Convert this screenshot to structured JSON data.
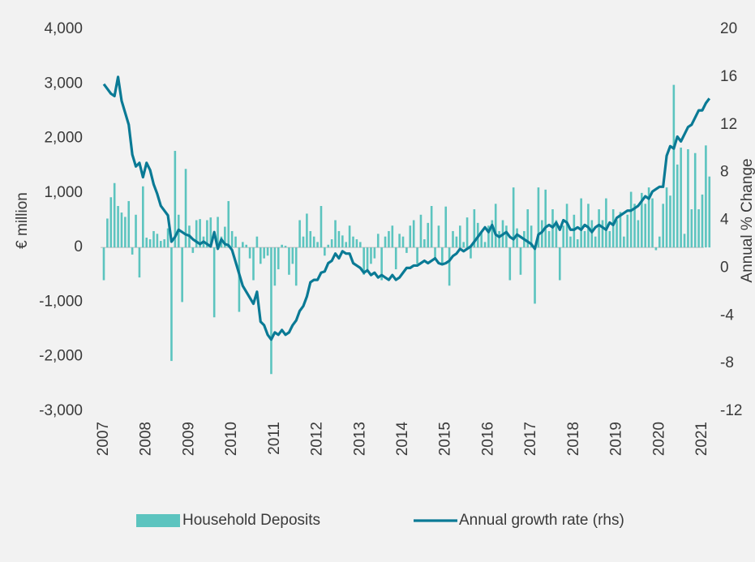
{
  "chart_data": {
    "type": "bar-line",
    "y_label": "€ million",
    "y2_label": "Annual % Change",
    "categories": [
      "2007",
      null,
      null,
      null,
      null,
      null,
      null,
      null,
      null,
      null,
      null,
      null,
      "2008",
      null,
      null,
      null,
      null,
      null,
      null,
      null,
      null,
      null,
      null,
      null,
      "2009",
      null,
      null,
      null,
      null,
      null,
      null,
      null,
      null,
      null,
      null,
      null,
      "2010",
      null,
      null,
      null,
      null,
      null,
      null,
      null,
      null,
      null,
      null,
      null,
      "2011",
      null,
      null,
      null,
      null,
      null,
      null,
      null,
      null,
      null,
      null,
      null,
      "2012",
      null,
      null,
      null,
      null,
      null,
      null,
      null,
      null,
      null,
      null,
      null,
      "2013",
      null,
      null,
      null,
      null,
      null,
      null,
      null,
      null,
      null,
      null,
      null,
      "2014",
      null,
      null,
      null,
      null,
      null,
      null,
      null,
      null,
      null,
      null,
      null,
      "2015",
      null,
      null,
      null,
      null,
      null,
      null,
      null,
      null,
      null,
      null,
      null,
      "2016",
      null,
      null,
      null,
      null,
      null,
      null,
      null,
      null,
      null,
      null,
      null,
      "2017",
      null,
      null,
      null,
      null,
      null,
      null,
      null,
      null,
      null,
      null,
      null,
      "2018",
      null,
      null,
      null,
      null,
      null,
      null,
      null,
      null,
      null,
      null,
      null,
      "2019",
      null,
      null,
      null,
      null,
      null,
      null,
      null,
      null,
      null,
      null,
      null,
      "2020",
      null,
      null,
      null,
      null,
      null,
      null,
      null,
      null,
      null,
      null,
      null,
      "2021",
      null,
      null
    ],
    "series": [
      {
        "name": "Household Deposits",
        "type": "bar",
        "color": "#5cc4bf",
        "values": [
          -600,
          530,
          920,
          1180,
          760,
          640,
          560,
          850,
          -130,
          600,
          -550,
          1120,
          180,
          150,
          300,
          250,
          120,
          150,
          350,
          -2080,
          1770,
          600,
          -1000,
          1440,
          400,
          -100,
          500,
          520,
          200,
          500,
          550,
          -1280,
          560,
          200,
          380,
          850,
          300,
          200,
          -1180,
          100,
          50,
          -200,
          -600,
          200,
          -300,
          -200,
          -150,
          -2320,
          -700,
          -400,
          50,
          30,
          -500,
          -300,
          -700,
          500,
          200,
          620,
          300,
          200,
          100,
          760,
          -150,
          50,
          150,
          500,
          300,
          220,
          100,
          400,
          200,
          150,
          100,
          -500,
          -400,
          -300,
          -200,
          250,
          -600,
          200,
          300,
          400,
          -400,
          250,
          200,
          -100,
          400,
          500,
          -300,
          600,
          150,
          450,
          760,
          -200,
          400,
          -300,
          750,
          -700,
          300,
          200,
          400,
          100,
          550,
          -200,
          700,
          450,
          300,
          100,
          400,
          500,
          800,
          300,
          500,
          400,
          -600,
          1100,
          350,
          -500,
          300,
          700,
          400,
          -1030,
          1100,
          500,
          1060,
          300,
          700,
          500,
          -600,
          400,
          800,
          200,
          600,
          150,
          900,
          300,
          800,
          500,
          200,
          700,
          500,
          900,
          300,
          700,
          500,
          650,
          200,
          600,
          1020,
          800,
          500,
          1000,
          800,
          1100,
          900,
          -50,
          200,
          800,
          1100,
          950,
          2980,
          1520,
          1830,
          250,
          1800,
          700,
          1730,
          700,
          970,
          1870,
          1300
        ]
      },
      {
        "name": "Annual growth rate (rhs)",
        "type": "line",
        "axis": "y2",
        "color": "#0a7a95",
        "values": [
          15.4,
          15.0,
          14.6,
          14.4,
          16.0,
          14.0,
          13.0,
          12.0,
          9.5,
          8.5,
          8.8,
          7.6,
          8.8,
          8.2,
          7.0,
          6.2,
          5.2,
          4.8,
          4.4,
          2.2,
          2.6,
          3.2,
          3.0,
          2.8,
          2.7,
          2.4,
          2.2,
          2.0,
          2.2,
          2.0,
          1.8,
          3.0,
          1.6,
          2.4,
          2.0,
          1.9,
          1.5,
          0.5,
          -0.5,
          -1.5,
          -2.0,
          -2.5,
          -3.0,
          -2.0,
          -4.5,
          -4.8,
          -5.6,
          -6.0,
          -5.4,
          -5.6,
          -5.2,
          -5.6,
          -5.4,
          -4.8,
          -4.4,
          -3.6,
          -3.2,
          -2.4,
          -1.2,
          -1.0,
          -1.0,
          -0.4,
          -0.3,
          0.4,
          0.6,
          1.2,
          0.8,
          1.4,
          1.2,
          1.2,
          0.4,
          0.2,
          0.0,
          -0.4,
          -0.2,
          -0.6,
          -0.4,
          -0.8,
          -0.6,
          -0.8,
          -1.0,
          -0.6,
          -1.0,
          -0.8,
          -0.4,
          0.0,
          0.0,
          0.2,
          0.2,
          0.4,
          0.6,
          0.4,
          0.6,
          0.8,
          0.4,
          0.3,
          0.4,
          0.6,
          1.0,
          1.2,
          1.6,
          1.4,
          1.6,
          1.8,
          2.2,
          2.6,
          3.0,
          3.4,
          3.0,
          3.6,
          2.8,
          2.6,
          2.8,
          3.0,
          2.6,
          2.4,
          2.8,
          2.6,
          2.4,
          2.2,
          2.0,
          1.6,
          2.8,
          3.0,
          3.4,
          3.6,
          3.4,
          3.8,
          3.2,
          4.0,
          3.8,
          3.2,
          3.2,
          3.4,
          3.2,
          3.6,
          3.4,
          3.0,
          3.4,
          3.6,
          3.4,
          3.2,
          3.8,
          3.6,
          4.2,
          4.4,
          4.6,
          4.8,
          4.8,
          5.0,
          5.2,
          5.6,
          6.0,
          5.8,
          6.4,
          6.6,
          6.8,
          6.8,
          9.4,
          10.2,
          10.0,
          11.0,
          10.6,
          11.2,
          11.8,
          12.0,
          12.6,
          13.2,
          13.2,
          13.8,
          14.2
        ]
      }
    ],
    "ylim": [
      -3000,
      4000
    ],
    "yticks": [
      {
        "value": -3000,
        "label": "-3,000"
      },
      {
        "value": -2000,
        "label": "-2,000"
      },
      {
        "value": -1000,
        "label": "-1,000"
      },
      0,
      {
        "value": 1000,
        "label": "1,000"
      },
      {
        "value": 2000,
        "label": "2,000"
      },
      {
        "value": 3000,
        "label": "3,000"
      },
      {
        "value": 4000,
        "label": "4,000"
      }
    ],
    "y2lim": [
      -12,
      20
    ],
    "y2ticks": [
      -12,
      -8,
      -4,
      0,
      4,
      8,
      12,
      16,
      20
    ]
  }
}
